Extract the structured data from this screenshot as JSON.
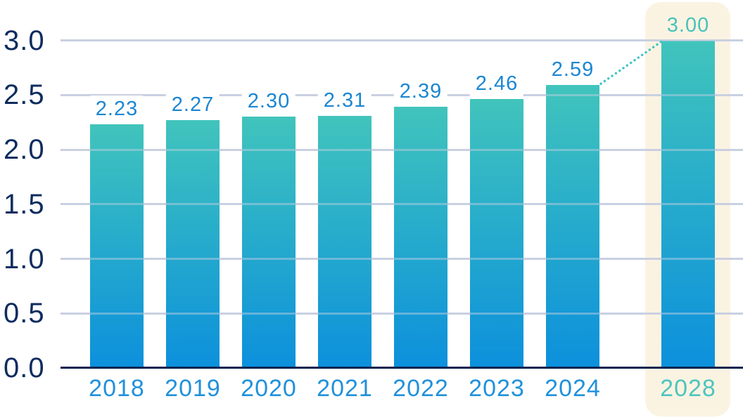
{
  "chart_data": {
    "type": "bar",
    "title": "",
    "xlabel": "",
    "ylabel": "",
    "categories": [
      "2018",
      "2019",
      "2020",
      "2021",
      "2022",
      "2023",
      "2024",
      "2028"
    ],
    "values": [
      2.23,
      2.27,
      2.3,
      2.31,
      2.39,
      2.46,
      2.59,
      3.0
    ],
    "value_labels": [
      "2.23",
      "2.27",
      "2.30",
      "2.31",
      "2.39",
      "2.46",
      "2.59",
      "3.00"
    ],
    "ylim": [
      0,
      3.0
    ],
    "ytick_labels": [
      "3.0",
      "2.5",
      "2.0",
      "1.5",
      "1.0",
      "0.5",
      "0.0"
    ],
    "grid": true,
    "legend": "none",
    "highlight": {
      "category": "2028",
      "connector_from": "2024",
      "connector_style": "dotted"
    },
    "colors": {
      "bar_gradient_top": "#41C4BC",
      "bar_gradient_bottom": "#0C90DC",
      "value_label_blue": "#1B86D2",
      "x_label_blue": "#2191DB",
      "highlight_teal": "#4DC5BE",
      "axis_navy": "#0D2C5E",
      "baseline_navy": "#0A2450",
      "gridline": "#C9CFE1",
      "highlight_panel": "#FBF3E2",
      "connector_teal": "#3EC3C7",
      "background": "#FFFFFF"
    }
  }
}
